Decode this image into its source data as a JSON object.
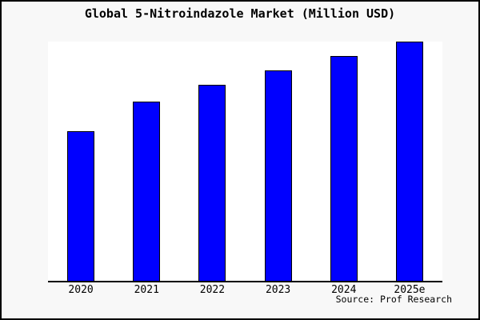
{
  "header": {
    "title": "Global 5-Nitroindazole Market (Million USD)"
  },
  "footer": {
    "source": "Source: Prof Research"
  },
  "colors": {
    "bar_fill": "#0000ff",
    "bar_border": "#000000",
    "axis": "#000000",
    "plot_background": "#ffffff",
    "canvas_background": "#f8f8f8",
    "frame_border": "#000000"
  },
  "chart_data": {
    "type": "bar",
    "title": "Global 5-Nitroindazole Market (Million USD)",
    "categories": [
      "2020",
      "2021",
      "2022",
      "2023",
      "2024",
      "2025e"
    ],
    "values": [
      62.5,
      74.9,
      81.9,
      88.0,
      94.0,
      100.0
    ],
    "value_note": "y-axis is unlabeled; values are relative units (tallest bar = 100)",
    "xlabel": "",
    "ylabel": "",
    "ylim": [
      0,
      100.7
    ],
    "grid": false,
    "legend": "none",
    "source": "Source: Prof Research"
  }
}
